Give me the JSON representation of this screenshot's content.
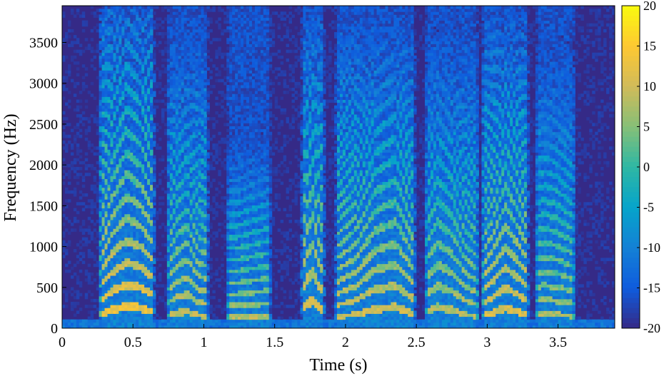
{
  "chart_data": {
    "type": "heatmap",
    "title": "",
    "xlabel": "Time (s)",
    "ylabel": "Frequency (Hz)",
    "xlim": [
      0,
      3.9
    ],
    "ylim": [
      0,
      3950
    ],
    "xticks": [
      0,
      0.5,
      1,
      1.5,
      2,
      2.5,
      3,
      3.5
    ],
    "xtick_labels": [
      "0",
      "0.5",
      "1",
      "1.5",
      "2",
      "2.5",
      "3",
      "3.5"
    ],
    "yticks": [
      0,
      500,
      1000,
      1500,
      2000,
      2500,
      3000,
      3500
    ],
    "ytick_labels": [
      "0",
      "500",
      "1000",
      "1500",
      "2000",
      "2500",
      "3000",
      "3500"
    ],
    "colorbar": {
      "limits": [
        -20,
        20
      ],
      "ticks": [
        20,
        15,
        10,
        5,
        0,
        -5,
        -10,
        -15,
        -20
      ],
      "tick_labels": [
        "20",
        "15",
        "10",
        "5",
        "0",
        "-5",
        "-10",
        "-15",
        "-20"
      ],
      "colormap": "parula"
    },
    "background_level": -20,
    "low_band": {
      "freq_range": [
        0,
        100
      ],
      "level": -12
    },
    "voiced_segments": [
      {
        "start": 0.25,
        "end": 0.66,
        "f0": [
          160,
          230,
          270,
          250,
          200
        ],
        "level": 14,
        "top_hz": 3900
      },
      {
        "start": 0.73,
        "end": 1.04,
        "f0": [
          150,
          190,
          210,
          160,
          150
        ],
        "level": 10,
        "top_hz": 3600
      },
      {
        "start": 1.15,
        "end": 1.48,
        "f0": [
          140,
          140,
          145,
          150,
          155
        ],
        "level": 9,
        "top_hz": 2400
      },
      {
        "start": 1.68,
        "end": 1.86,
        "f0": [
          200,
          300,
          340,
          260,
          220
        ],
        "level": 12,
        "top_hz": 3800
      },
      {
        "start": 1.92,
        "end": 2.5,
        "f0": [
          140,
          170,
          240,
          260,
          170
        ],
        "level": 11,
        "top_hz": 3700
      },
      {
        "start": 2.55,
        "end": 2.95,
        "f0": [
          200,
          260,
          230,
          170,
          140
        ],
        "level": 9,
        "top_hz": 3700
      },
      {
        "start": 2.95,
        "end": 3.3,
        "f0": [
          150,
          190,
          250,
          210,
          160
        ],
        "level": 12,
        "top_hz": 3800
      },
      {
        "start": 3.33,
        "end": 3.63,
        "f0": [
          170,
          175,
          170,
          160,
          150
        ],
        "level": 8,
        "top_hz": 3600
      }
    ],
    "grid": false
  },
  "colors": {
    "parula": [
      "#352a87",
      "#0f5cdd",
      "#1481d6",
      "#06a4ca",
      "#2eb7a4",
      "#87bf77",
      "#d1bb59",
      "#fec832",
      "#f9fb0e"
    ],
    "axis": "#000000",
    "background": "#ffffff"
  }
}
